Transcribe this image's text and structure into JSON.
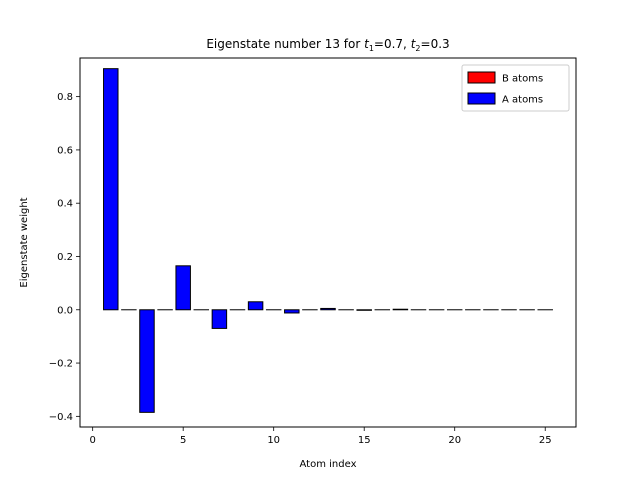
{
  "chart_data": {
    "type": "bar",
    "title_parts": [
      "Eigenstate number 13 for ",
      "t",
      "1",
      "=0.7, ",
      "t",
      "2",
      "=0.3"
    ],
    "xlabel": "Atom index",
    "ylabel": "Eigenstate weight",
    "xlim": [
      -0.7,
      26.7
    ],
    "ylim": [
      -0.44,
      0.945
    ],
    "xticks": [
      0,
      5,
      10,
      15,
      20,
      25
    ],
    "yticks": [
      -0.4,
      -0.2,
      0.0,
      0.2,
      0.4,
      0.6,
      0.8
    ],
    "ytick_labels": [
      "−0.4",
      "−0.2",
      "0.0",
      "0.2",
      "0.4",
      "0.6",
      "0.8"
    ],
    "bar_width": 0.8,
    "legend": {
      "placement": "top-right",
      "entries": [
        "B atoms",
        "A atoms"
      ]
    },
    "series": [
      {
        "name": "B atoms",
        "color": "#ff0000",
        "x": [
          2,
          4,
          6,
          8,
          10,
          12,
          14,
          16,
          18,
          20,
          22,
          24
        ],
        "values": [
          0,
          0,
          0,
          0,
          0,
          0,
          0,
          0,
          0,
          0,
          0,
          0
        ]
      },
      {
        "name": "A atoms",
        "color": "#0000ff",
        "x": [
          1,
          3,
          5,
          7,
          9,
          11,
          13,
          15,
          17,
          19,
          21,
          23,
          25
        ],
        "values": [
          0.905,
          -0.385,
          0.165,
          -0.07,
          0.03,
          -0.012,
          0.005,
          -0.002,
          0.002,
          0,
          0,
          0,
          0
        ]
      }
    ]
  }
}
